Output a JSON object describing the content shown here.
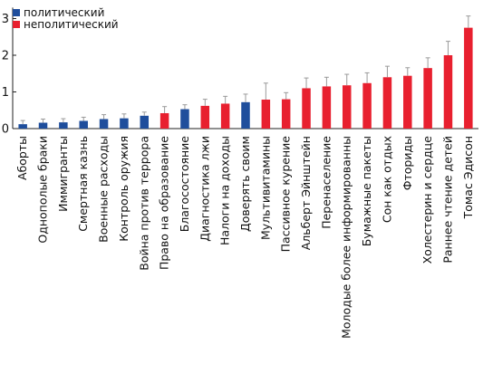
{
  "chart_data": {
    "type": "bar",
    "title": "",
    "xlabel": "",
    "ylabel": "",
    "ylim": [
      0,
      3.3
    ],
    "yticks": [
      0,
      1,
      2,
      3
    ],
    "grid": false,
    "legend": {
      "placement": "top-left",
      "entries": [
        {
          "label": "политический",
          "color": "#1f4e9c"
        },
        {
          "label": "неполитический",
          "color": "#e8202f"
        }
      ]
    },
    "categories": [
      "Аборты",
      "Однополые браки",
      "Иммигранты",
      "Смертная казнь",
      "Военные расходы",
      "Контроль оружия",
      "Война против террора",
      "Право на образование",
      "Благосостояние",
      "Диагностика лжи",
      "Налоги на доходы",
      "Доверять своим",
      "Мультивитамины",
      "Пассивное курение",
      "Альберт Эйнштейн",
      "Перенаселение",
      "Молодые более информированны",
      "Бумажные пакеты",
      "Сон как отдых",
      "Фториды",
      "Холестерин и сердце",
      "Раннее чтение детей",
      "Томас Эдисон"
    ],
    "groups": [
      "политический",
      "политический",
      "политический",
      "политический",
      "политический",
      "политический",
      "политический",
      "неполитический",
      "политический",
      "неполитический",
      "неполитический",
      "политический",
      "неполитический",
      "неполитический",
      "неполитический",
      "неполитический",
      "неполитический",
      "неполитический",
      "неполитический",
      "неполитический",
      "неполитический",
      "неполитический",
      "неполитический"
    ],
    "values": [
      0.12,
      0.16,
      0.17,
      0.21,
      0.26,
      0.28,
      0.35,
      0.42,
      0.53,
      0.62,
      0.68,
      0.72,
      0.79,
      0.8,
      1.1,
      1.15,
      1.18,
      1.24,
      1.4,
      1.44,
      1.65,
      2.0,
      2.75
    ],
    "errors": [
      0.1,
      0.1,
      0.1,
      0.1,
      0.12,
      0.12,
      0.1,
      0.18,
      0.12,
      0.18,
      0.2,
      0.22,
      0.45,
      0.18,
      0.28,
      0.25,
      0.3,
      0.28,
      0.3,
      0.22,
      0.28,
      0.38,
      0.32
    ]
  }
}
